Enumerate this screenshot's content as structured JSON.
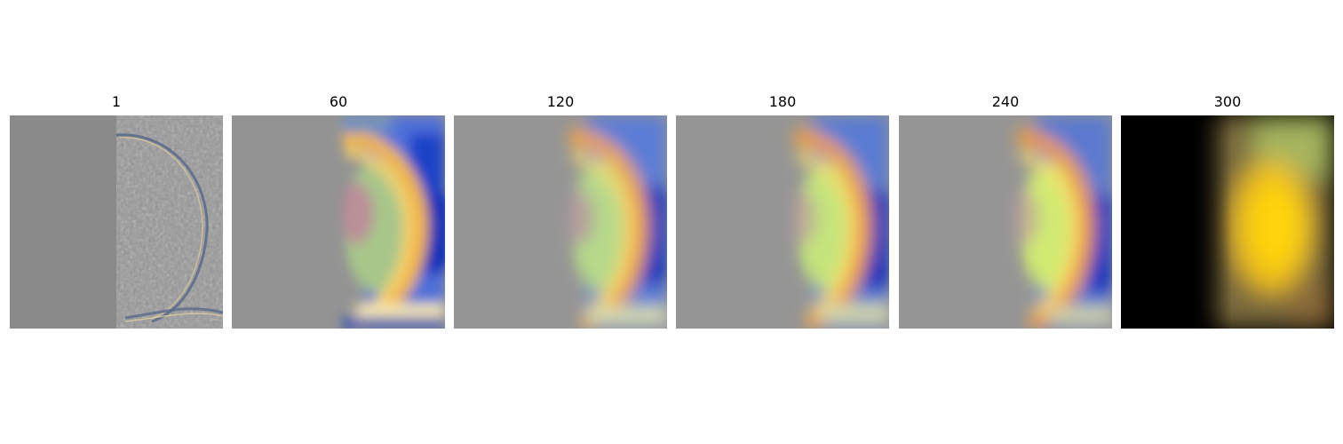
{
  "figure": {
    "panels": [
      {
        "title": "1",
        "icon": "feature-map-image-step-1"
      },
      {
        "title": "60",
        "icon": "feature-map-image-step-60"
      },
      {
        "title": "120",
        "icon": "feature-map-image-step-120"
      },
      {
        "title": "180",
        "icon": "feature-map-image-step-180"
      },
      {
        "title": "240",
        "icon": "feature-map-image-step-240"
      },
      {
        "title": "300",
        "icon": "feature-map-image-step-300"
      }
    ]
  }
}
